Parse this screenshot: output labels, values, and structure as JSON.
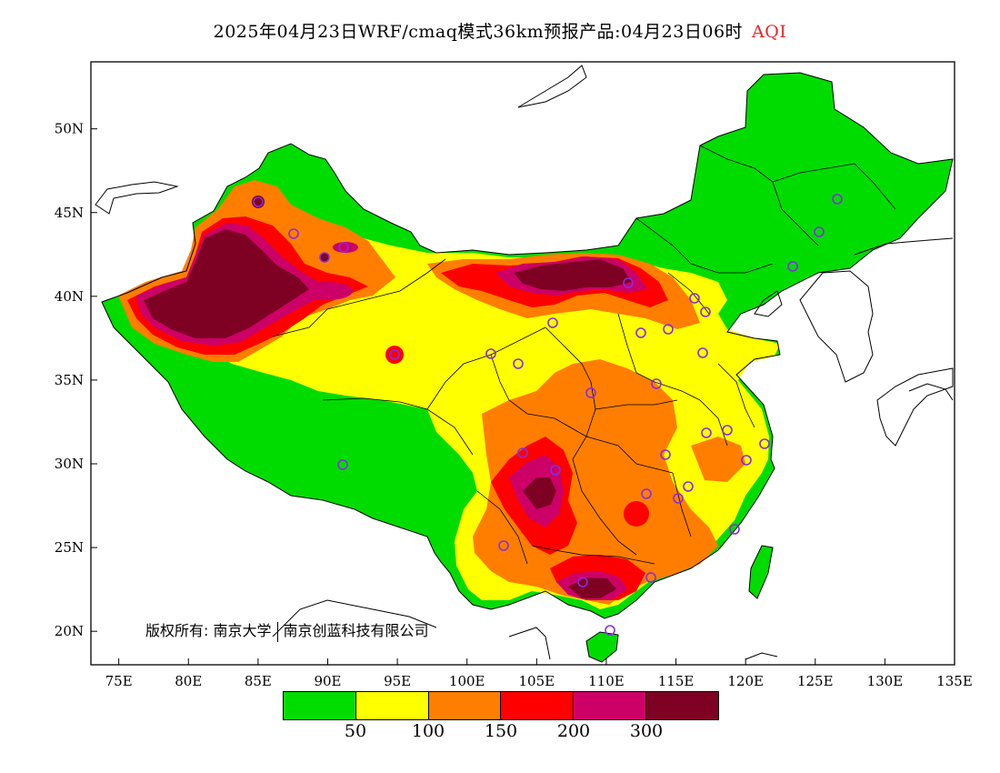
{
  "title": {
    "main": "2025年04月23日WRF/cmaq模式36km预报产品:04月23日06时",
    "variable": "AQI"
  },
  "map": {
    "lon_ticks": [
      "75E",
      "80E",
      "85E",
      "90E",
      "95E",
      "100E",
      "105E",
      "110E",
      "115E",
      "120E",
      "125E",
      "130E",
      "135E"
    ],
    "lat_ticks": [
      "20N",
      "25N",
      "30N",
      "35N",
      "40N",
      "45N",
      "50N"
    ],
    "lon_range": [
      73,
      135
    ],
    "lat_range": [
      18,
      54
    ]
  },
  "legend": {
    "colors": [
      "#00dc00",
      "#ffff00",
      "#ff7e00",
      "#ff0000",
      "#cc0066",
      "#7e0023"
    ],
    "labels": [
      "50",
      "100",
      "150",
      "200",
      "300"
    ]
  },
  "copyright": {
    "label": "版权所有:",
    "org1": "南京大学",
    "org2": "南京创蓝科技有限公司"
  }
}
